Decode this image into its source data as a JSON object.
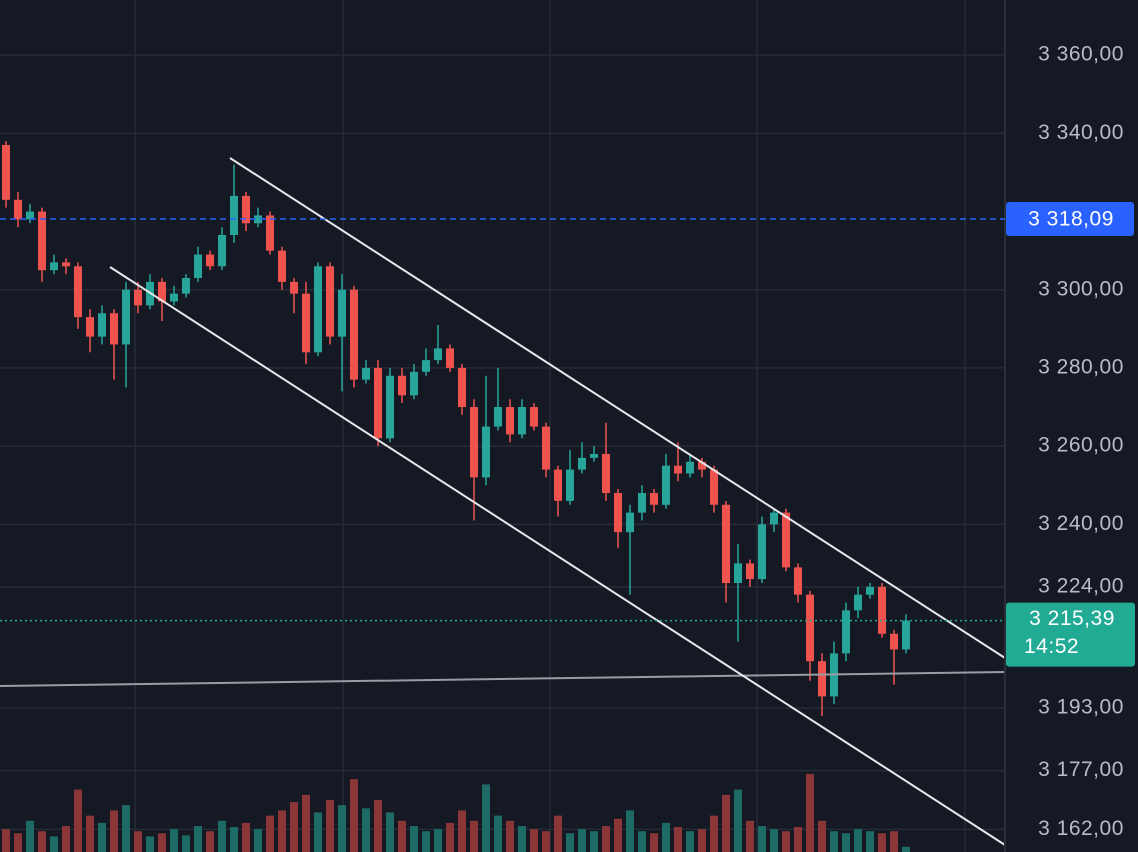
{
  "chart_data": {
    "type": "candlestick",
    "up_color": "#26a69a",
    "down_color": "#ef5350",
    "volume_up_color": "#1e6b66",
    "volume_down_color": "#8a3538",
    "ylim": [
      3156.2,
      3374.1
    ],
    "yticks": [
      {
        "value": 3360,
        "label": "3 360,00"
      },
      {
        "value": 3340,
        "label": "3 340,00"
      },
      {
        "value": 3300,
        "label": "3 300,00"
      },
      {
        "value": 3280,
        "label": "3 280,00"
      },
      {
        "value": 3260,
        "label": "3 260,00"
      },
      {
        "value": 3240,
        "label": "3 240,00"
      },
      {
        "value": 3224,
        "label": "3 224,00"
      },
      {
        "value": 3193,
        "label": "3 193,00"
      },
      {
        "value": 3177,
        "label": "3 177,00"
      },
      {
        "value": 3162,
        "label": "3 162,00"
      }
    ],
    "grid": true,
    "open": [
      3337,
      3323,
      3318,
      3320,
      3305,
      3307,
      3306,
      3293,
      3288,
      3294,
      3286,
      3300,
      3296,
      3302,
      3297,
      3299,
      3303,
      3309,
      3306,
      3314,
      3324,
      3317,
      3319,
      3310,
      3302,
      3299,
      3284,
      3306,
      3288,
      3300,
      3277,
      3280,
      3262,
      3278,
      3273,
      3279,
      3282,
      3285,
      3280,
      3270,
      3252,
      3265,
      3270,
      3263,
      3270,
      3265,
      3254,
      3246,
      3254,
      3257,
      3258,
      3248,
      3238,
      3243,
      3248,
      3245,
      3255,
      3253,
      3256,
      3254,
      3245,
      3225,
      3230,
      3226,
      3240,
      3243,
      3229,
      3222,
      3205,
      3196,
      3207,
      3218,
      3222,
      3224,
      3212,
      3208
    ],
    "high": [
      3338,
      3325,
      3322,
      3321,
      3309,
      3308,
      3307,
      3295,
      3296,
      3295,
      3302,
      3302,
      3304,
      3303,
      3301,
      3304,
      3311,
      3310,
      3316,
      3332,
      3325,
      3321,
      3320,
      3311,
      3303,
      3302,
      3307,
      3307,
      3304,
      3301,
      3282,
      3282,
      3280,
      3280,
      3281,
      3285,
      3291,
      3286,
      3281,
      3272,
      3278,
      3280,
      3272,
      3272,
      3271,
      3266,
      3255,
      3259,
      3261,
      3260,
      3266,
      3249,
      3245,
      3250,
      3249,
      3258,
      3261,
      3258,
      3257,
      3255,
      3246,
      3235,
      3231,
      3242,
      3244,
      3244,
      3230,
      3223,
      3207,
      3210,
      3220,
      3224,
      3225,
      3225,
      3213,
      3217
    ],
    "low": [
      3321,
      3316,
      3317,
      3302,
      3304,
      3304,
      3290,
      3284,
      3286,
      3277,
      3275,
      3294,
      3295,
      3292,
      3296,
      3298,
      3302,
      3305,
      3305,
      3312,
      3315,
      3316,
      3309,
      3300,
      3294,
      3281,
      3283,
      3286,
      3274,
      3275,
      3276,
      3260,
      3261,
      3271,
      3272,
      3278,
      3281,
      3279,
      3268,
      3241,
      3250,
      3264,
      3261,
      3262,
      3264,
      3252,
      3242,
      3245,
      3253,
      3256,
      3246,
      3234,
      3222,
      3241,
      3243,
      3244,
      3251,
      3252,
      3252,
      3243,
      3220,
      3210,
      3224,
      3225,
      3238,
      3228,
      3220,
      3200,
      3191,
      3194,
      3205,
      3216,
      3221,
      3211,
      3199,
      3207
    ],
    "close": [
      3323,
      3318,
      3320,
      3305,
      3307,
      3306,
      3293,
      3288,
      3294,
      3286,
      3300,
      3296,
      3302,
      3297,
      3299,
      3303,
      3309,
      3306,
      3314,
      3324,
      3317,
      3319,
      3310,
      3302,
      3299,
      3284,
      3306,
      3288,
      3300,
      3277,
      3280,
      3262,
      3278,
      3273,
      3279,
      3282,
      3285,
      3280,
      3270,
      3252,
      3265,
      3270,
      3263,
      3270,
      3265,
      3254,
      3246,
      3254,
      3257,
      3258,
      3248,
      3238,
      3243,
      3248,
      3245,
      3255,
      3253,
      3256,
      3254,
      3245,
      3225,
      3230,
      3226,
      3240,
      3243,
      3229,
      3222,
      3205,
      3196,
      3207,
      3218,
      3222,
      3224,
      3212,
      3208,
      3215.39
    ],
    "volume": [
      22,
      18,
      30,
      20,
      15,
      25,
      60,
      35,
      28,
      40,
      45,
      20,
      15,
      18,
      22,
      16,
      25,
      20,
      30,
      24,
      28,
      22,
      35,
      40,
      48,
      55,
      38,
      50,
      45,
      70,
      42,
      50,
      38,
      30,
      25,
      20,
      22,
      28,
      40,
      30,
      65,
      35,
      30,
      25,
      22,
      20,
      35,
      18,
      22,
      20,
      25,
      32,
      40,
      20,
      18,
      28,
      24,
      20,
      22,
      35,
      55,
      60,
      30,
      25,
      22,
      20,
      24,
      75,
      30,
      20,
      18,
      22,
      20,
      18,
      20,
      5
    ],
    "price_line": {
      "value": 3318.09,
      "label": "3 318,09"
    },
    "last_price": {
      "value": 3215.39,
      "label": "3 215,39"
    },
    "countdown": "14:52"
  }
}
